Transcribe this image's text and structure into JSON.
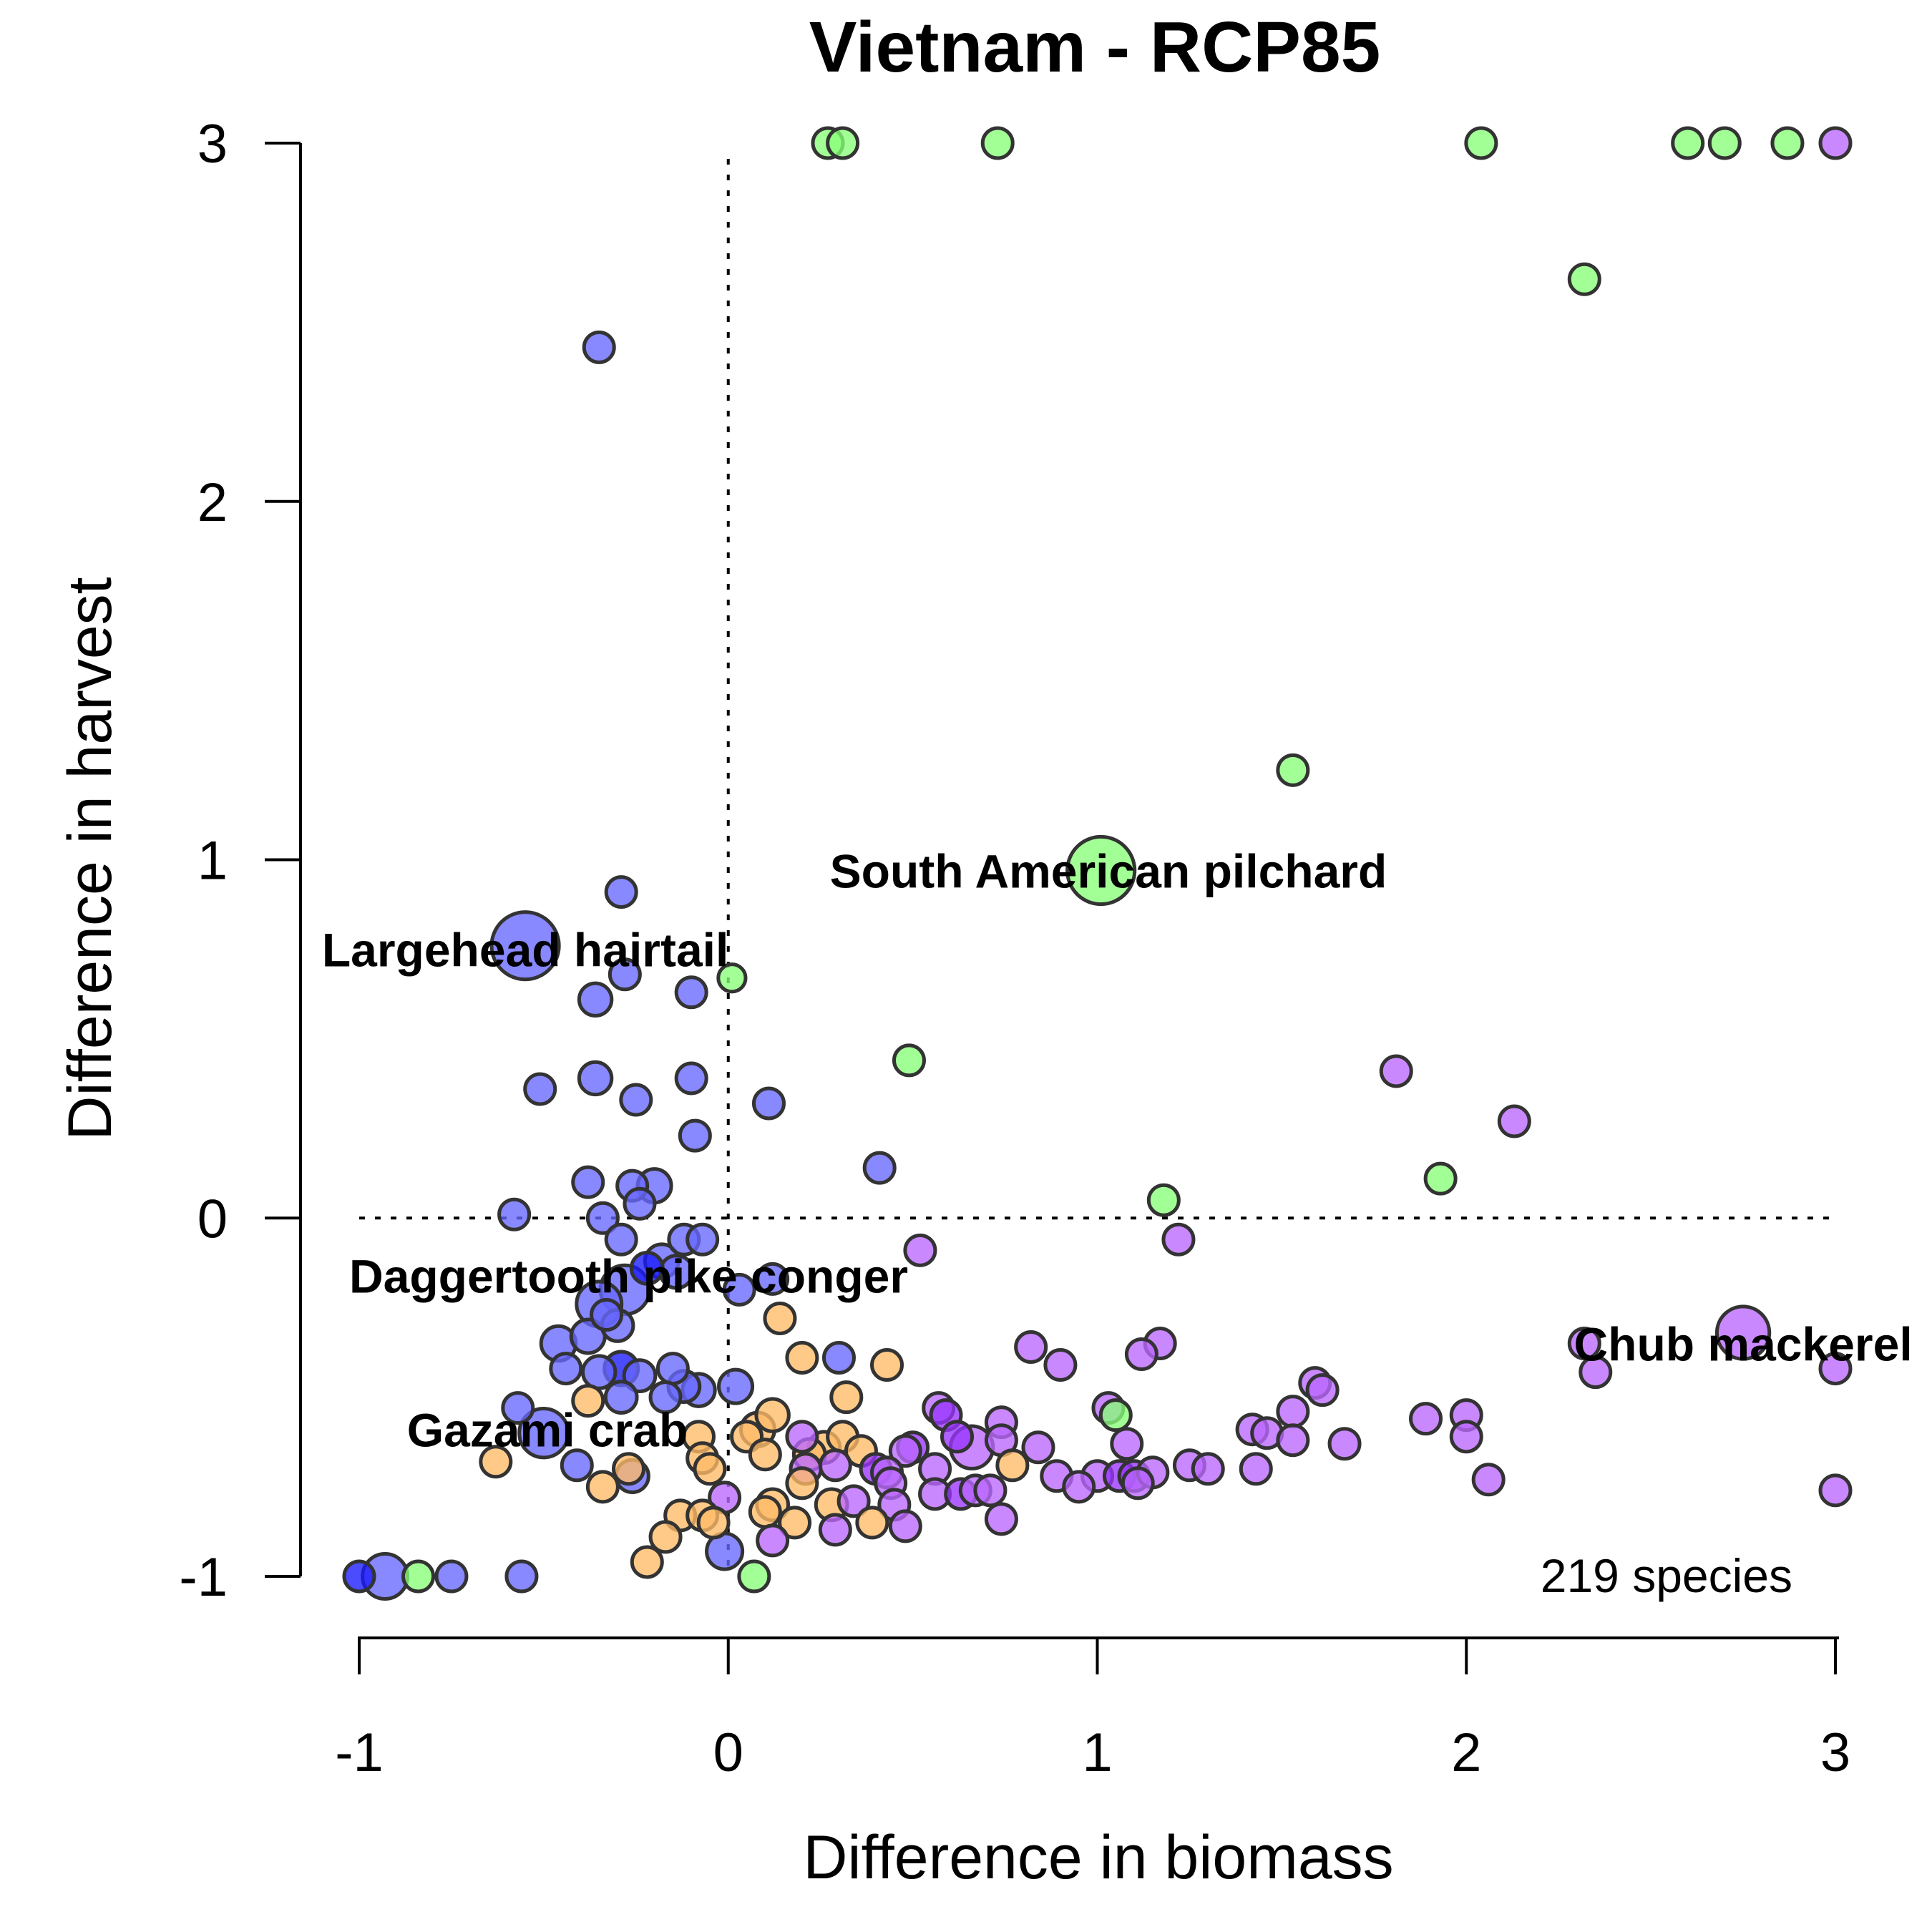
{
  "chart_data": {
    "type": "scatter",
    "title": "Vietnam - RCP85",
    "xlabel": "Difference in biomass",
    "ylabel": "Difference in harvest",
    "xlim": [
      -1,
      3
    ],
    "ylim": [
      -1,
      3
    ],
    "x_ticks": [
      "-1",
      "0",
      "1",
      "2",
      "3"
    ],
    "y_ticks": [
      "-1",
      "0",
      "1",
      "2",
      "3"
    ],
    "grid": false,
    "reference_lines": {
      "x": 0,
      "y": 0,
      "style": "dotted"
    },
    "annotation": "219 species",
    "colors": {
      "blue": "#6666ff",
      "dark_blue": "#1a1aff",
      "green": "#88ff77",
      "orange": "#ffbb66",
      "purple": "#bb66ff",
      "dark_purple": "#9933ff"
    },
    "labels": [
      {
        "text": "Largehead hairtail",
        "x": -0.55,
        "y": 0.75
      },
      {
        "text": "South American pilchard",
        "x": 1.03,
        "y": 0.97
      },
      {
        "text": "Daggertooth pike conger",
        "x": -0.27,
        "y": -0.16
      },
      {
        "text": "Gazami crab",
        "x": -0.49,
        "y": -0.59
      },
      {
        "text": "Chub mackerel",
        "x": 2.75,
        "y": -0.35
      }
    ],
    "points": [
      {
        "x": -0.55,
        "y": 0.76,
        "size": 6,
        "group": "blue"
      },
      {
        "x": 1.01,
        "y": 0.97,
        "size": 6,
        "group": "green"
      },
      {
        "x": 2.75,
        "y": -0.32,
        "size": 3.5,
        "group": "purple"
      },
      {
        "x": -0.5,
        "y": -0.6,
        "size": 3,
        "group": "blue"
      },
      {
        "x": -0.93,
        "y": -1.0,
        "size": 2.5,
        "group": "blue"
      },
      {
        "x": -0.28,
        "y": -0.2,
        "size": 3,
        "group": "blue"
      },
      {
        "x": -0.35,
        "y": -0.24,
        "size": 2.5,
        "group": "blue"
      },
      {
        "x": 0.66,
        "y": -0.64,
        "size": 2.2,
        "group": "purple"
      },
      {
        "x": 0.27,
        "y": 3.0,
        "size": 1,
        "group": "green"
      },
      {
        "x": 0.31,
        "y": 3.0,
        "size": 1,
        "group": "green"
      },
      {
        "x": 0.73,
        "y": 3.0,
        "size": 1,
        "group": "green"
      },
      {
        "x": 2.04,
        "y": 3.0,
        "size": 1,
        "group": "green"
      },
      {
        "x": 2.6,
        "y": 3.0,
        "size": 1,
        "group": "green"
      },
      {
        "x": 2.7,
        "y": 3.0,
        "size": 1,
        "group": "green"
      },
      {
        "x": 2.87,
        "y": 3.0,
        "size": 1,
        "group": "green"
      },
      {
        "x": 3.0,
        "y": 3.0,
        "size": 1,
        "group": "purple"
      },
      {
        "x": 2.32,
        "y": 2.62,
        "size": 1,
        "group": "green"
      },
      {
        "x": -0.35,
        "y": 2.43,
        "size": 1,
        "group": "blue"
      },
      {
        "x": 1.53,
        "y": 1.25,
        "size": 1,
        "group": "green"
      },
      {
        "x": -0.29,
        "y": 0.91,
        "size": 1,
        "group": "blue"
      },
      {
        "x": 0.01,
        "y": 0.67,
        "size": 0.8,
        "group": "green"
      },
      {
        "x": -0.28,
        "y": 0.68,
        "size": 1,
        "group": "blue"
      },
      {
        "x": -0.1,
        "y": 0.63,
        "size": 1,
        "group": "blue"
      },
      {
        "x": -0.36,
        "y": 0.61,
        "size": 1.2,
        "group": "blue"
      },
      {
        "x": 0.49,
        "y": 0.44,
        "size": 1,
        "group": "green"
      },
      {
        "x": 1.81,
        "y": 0.41,
        "size": 1,
        "group": "purple"
      },
      {
        "x": -0.36,
        "y": 0.39,
        "size": 1.2,
        "group": "blue"
      },
      {
        "x": -0.1,
        "y": 0.39,
        "size": 1,
        "group": "blue"
      },
      {
        "x": -0.51,
        "y": 0.36,
        "size": 1,
        "group": "blue"
      },
      {
        "x": -0.25,
        "y": 0.33,
        "size": 1,
        "group": "blue"
      },
      {
        "x": 0.11,
        "y": 0.32,
        "size": 1,
        "group": "blue"
      },
      {
        "x": 2.13,
        "y": 0.27,
        "size": 1,
        "group": "purple"
      },
      {
        "x": -0.09,
        "y": 0.23,
        "size": 1,
        "group": "blue"
      },
      {
        "x": 0.41,
        "y": 0.14,
        "size": 1,
        "group": "blue"
      },
      {
        "x": 1.93,
        "y": 0.11,
        "size": 1,
        "group": "green"
      },
      {
        "x": -0.38,
        "y": 0.1,
        "size": 1,
        "group": "blue"
      },
      {
        "x": -0.26,
        "y": 0.09,
        "size": 1,
        "group": "blue"
      },
      {
        "x": -0.2,
        "y": 0.09,
        "size": 1.3,
        "group": "blue"
      },
      {
        "x": -0.24,
        "y": 0.04,
        "size": 1,
        "group": "blue"
      },
      {
        "x": 1.18,
        "y": 0.05,
        "size": 1,
        "group": "green"
      },
      {
        "x": -0.58,
        "y": 0.01,
        "size": 1,
        "group": "blue"
      },
      {
        "x": -0.34,
        "y": 0.0,
        "size": 1,
        "group": "blue"
      },
      {
        "x": -0.29,
        "y": -0.06,
        "size": 1,
        "group": "blue"
      },
      {
        "x": -0.12,
        "y": -0.06,
        "size": 1,
        "group": "blue"
      },
      {
        "x": -0.07,
        "y": -0.06,
        "size": 1,
        "group": "blue"
      },
      {
        "x": 1.22,
        "y": -0.06,
        "size": 1,
        "group": "purple"
      },
      {
        "x": 0.52,
        "y": -0.09,
        "size": 1,
        "group": "purple"
      },
      {
        "x": -0.18,
        "y": -0.12,
        "size": 1.3,
        "group": "blue"
      },
      {
        "x": -0.14,
        "y": -0.15,
        "size": 1.2,
        "group": "blue"
      },
      {
        "x": -0.22,
        "y": -0.14,
        "size": 1.1,
        "group": "dark_blue"
      },
      {
        "x": 0.12,
        "y": -0.17,
        "size": 1,
        "group": "blue"
      },
      {
        "x": 0.03,
        "y": -0.2,
        "size": 1,
        "group": "blue"
      },
      {
        "x": -0.33,
        "y": -0.27,
        "size": 1,
        "group": "blue"
      },
      {
        "x": -0.3,
        "y": -0.3,
        "size": 1.1,
        "group": "blue"
      },
      {
        "x": 0.14,
        "y": -0.28,
        "size": 1,
        "group": "orange"
      },
      {
        "x": -0.38,
        "y": -0.33,
        "size": 1.3,
        "group": "blue"
      },
      {
        "x": -0.46,
        "y": -0.35,
        "size": 1.4,
        "group": "blue"
      },
      {
        "x": 1.17,
        "y": -0.35,
        "size": 1,
        "group": "purple"
      },
      {
        "x": 0.82,
        "y": -0.36,
        "size": 1,
        "group": "purple"
      },
      {
        "x": -0.44,
        "y": -0.42,
        "size": 1,
        "group": "blue"
      },
      {
        "x": -0.35,
        "y": -0.43,
        "size": 1.2,
        "group": "blue"
      },
      {
        "x": -0.29,
        "y": -0.42,
        "size": 1.3,
        "group": "dark_blue"
      },
      {
        "x": -0.24,
        "y": -0.44,
        "size": 1.1,
        "group": "blue"
      },
      {
        "x": -0.15,
        "y": -0.42,
        "size": 1,
        "group": "blue"
      },
      {
        "x": 0.2,
        "y": -0.39,
        "size": 1,
        "group": "orange"
      },
      {
        "x": 0.3,
        "y": -0.39,
        "size": 1,
        "group": "blue"
      },
      {
        "x": 0.43,
        "y": -0.41,
        "size": 1,
        "group": "orange"
      },
      {
        "x": 0.9,
        "y": -0.41,
        "size": 1,
        "group": "purple"
      },
      {
        "x": 1.12,
        "y": -0.38,
        "size": 1,
        "group": "purple"
      },
      {
        "x": 2.32,
        "y": -0.35,
        "size": 1,
        "group": "purple"
      },
      {
        "x": 2.35,
        "y": -0.43,
        "size": 1,
        "group": "purple"
      },
      {
        "x": 3.0,
        "y": -0.42,
        "size": 1,
        "group": "purple"
      },
      {
        "x": -0.12,
        "y": -0.47,
        "size": 1.1,
        "group": "blue"
      },
      {
        "x": -0.08,
        "y": -0.48,
        "size": 1.2,
        "group": "blue"
      },
      {
        "x": 0.02,
        "y": -0.47,
        "size": 1.3,
        "group": "blue"
      },
      {
        "x": 1.59,
        "y": -0.46,
        "size": 1,
        "group": "purple"
      },
      {
        "x": 1.61,
        "y": -0.48,
        "size": 1,
        "group": "purple"
      },
      {
        "x": -0.57,
        "y": -0.53,
        "size": 1,
        "group": "blue"
      },
      {
        "x": -0.38,
        "y": -0.51,
        "size": 1,
        "group": "orange"
      },
      {
        "x": -0.29,
        "y": -0.5,
        "size": 1.1,
        "group": "blue"
      },
      {
        "x": -0.17,
        "y": -0.5,
        "size": 1,
        "group": "blue"
      },
      {
        "x": 0.32,
        "y": -0.5,
        "size": 1,
        "group": "orange"
      },
      {
        "x": 0.57,
        "y": -0.53,
        "size": 1,
        "group": "purple"
      },
      {
        "x": 1.03,
        "y": -0.53,
        "size": 1,
        "group": "purple"
      },
      {
        "x": 1.05,
        "y": -0.55,
        "size": 1,
        "group": "green"
      },
      {
        "x": 1.53,
        "y": -0.54,
        "size": 1,
        "group": "purple"
      },
      {
        "x": 1.89,
        "y": -0.56,
        "size": 1,
        "group": "purple"
      },
      {
        "x": 2.0,
        "y": -0.55,
        "size": 1,
        "group": "purple"
      },
      {
        "x": 0.12,
        "y": -0.55,
        "size": 1.2,
        "group": "orange"
      },
      {
        "x": 0.08,
        "y": -0.59,
        "size": 1.3,
        "group": "orange"
      },
      {
        "x": 0.59,
        "y": -0.55,
        "size": 1,
        "group": "dark_purple"
      },
      {
        "x": 0.74,
        "y": -0.57,
        "size": 1,
        "group": "purple"
      },
      {
        "x": -0.08,
        "y": -0.61,
        "size": 1,
        "group": "orange"
      },
      {
        "x": 0.05,
        "y": -0.61,
        "size": 1,
        "group": "orange"
      },
      {
        "x": 0.2,
        "y": -0.61,
        "size": 1,
        "group": "purple"
      },
      {
        "x": 0.31,
        "y": -0.61,
        "size": 1,
        "group": "orange"
      },
      {
        "x": 0.62,
        "y": -0.61,
        "size": 1,
        "group": "dark_purple"
      },
      {
        "x": 0.74,
        "y": -0.62,
        "size": 1,
        "group": "purple"
      },
      {
        "x": 1.42,
        "y": -0.59,
        "size": 1,
        "group": "purple"
      },
      {
        "x": 1.46,
        "y": -0.6,
        "size": 1,
        "group": "purple"
      },
      {
        "x": 1.53,
        "y": -0.62,
        "size": 1,
        "group": "purple"
      },
      {
        "x": 1.67,
        "y": -0.63,
        "size": 1,
        "group": "purple"
      },
      {
        "x": 2.0,
        "y": -0.61,
        "size": 1,
        "group": "purple"
      },
      {
        "x": 1.08,
        "y": -0.63,
        "size": 1,
        "group": "purple"
      },
      {
        "x": 0.84,
        "y": -0.64,
        "size": 1,
        "group": "purple"
      },
      {
        "x": 0.5,
        "y": -0.64,
        "size": 1,
        "group": "dark_purple"
      },
      {
        "x": 0.48,
        "y": -0.65,
        "size": 1,
        "group": "purple"
      },
      {
        "x": 0.26,
        "y": -0.64,
        "size": 1.1,
        "group": "orange"
      },
      {
        "x": 0.22,
        "y": -0.66,
        "size": 1.1,
        "group": "orange"
      },
      {
        "x": 0.36,
        "y": -0.65,
        "size": 1,
        "group": "orange"
      },
      {
        "x": 0.1,
        "y": -0.66,
        "size": 1,
        "group": "orange"
      },
      {
        "x": -0.63,
        "y": -0.68,
        "size": 1,
        "group": "orange"
      },
      {
        "x": -0.41,
        "y": -0.69,
        "size": 1,
        "group": "blue"
      },
      {
        "x": -0.27,
        "y": -0.7,
        "size": 1,
        "group": "orange"
      },
      {
        "x": -0.07,
        "y": -0.67,
        "size": 1,
        "group": "orange"
      },
      {
        "x": -0.05,
        "y": -0.7,
        "size": 1,
        "group": "orange"
      },
      {
        "x": 0.21,
        "y": -0.7,
        "size": 1,
        "group": "purple"
      },
      {
        "x": 0.29,
        "y": -0.69,
        "size": 1,
        "group": "purple"
      },
      {
        "x": 0.4,
        "y": -0.7,
        "size": 1,
        "group": "dark_purple"
      },
      {
        "x": 0.43,
        "y": -0.71,
        "size": 1,
        "group": "purple"
      },
      {
        "x": 0.56,
        "y": -0.7,
        "size": 1,
        "group": "purple"
      },
      {
        "x": 0.77,
        "y": -0.69,
        "size": 1,
        "group": "orange"
      },
      {
        "x": 0.89,
        "y": -0.72,
        "size": 1,
        "group": "purple"
      },
      {
        "x": 1.0,
        "y": -0.72,
        "size": 1,
        "group": "purple"
      },
      {
        "x": 1.06,
        "y": -0.72,
        "size": 1,
        "group": "dark_purple"
      },
      {
        "x": 1.1,
        "y": -0.72,
        "size": 1,
        "group": "dark_purple"
      },
      {
        "x": 1.15,
        "y": -0.71,
        "size": 1,
        "group": "purple"
      },
      {
        "x": 1.25,
        "y": -0.69,
        "size": 1,
        "group": "purple"
      },
      {
        "x": 1.3,
        "y": -0.7,
        "size": 1,
        "group": "purple"
      },
      {
        "x": 1.43,
        "y": -0.7,
        "size": 1,
        "group": "purple"
      },
      {
        "x": 2.06,
        "y": -0.73,
        "size": 1,
        "group": "purple"
      },
      {
        "x": -0.26,
        "y": -0.72,
        "size": 1.2,
        "group": "blue"
      },
      {
        "x": -0.34,
        "y": -0.75,
        "size": 1,
        "group": "orange"
      },
      {
        "x": 0.95,
        "y": -0.75,
        "size": 1,
        "group": "purple"
      },
      {
        "x": 1.11,
        "y": -0.74,
        "size": 1,
        "group": "purple"
      },
      {
        "x": 0.2,
        "y": -0.74,
        "size": 1,
        "group": "orange"
      },
      {
        "x": 0.44,
        "y": -0.74,
        "size": 1,
        "group": "purple"
      },
      {
        "x": 0.56,
        "y": -0.77,
        "size": 1,
        "group": "purple"
      },
      {
        "x": 0.63,
        "y": -0.77,
        "size": 1,
        "group": "dark_purple"
      },
      {
        "x": 0.67,
        "y": -0.76,
        "size": 1,
        "group": "purple"
      },
      {
        "x": 0.71,
        "y": -0.76,
        "size": 1,
        "group": "purple"
      },
      {
        "x": 3.0,
        "y": -0.76,
        "size": 1,
        "group": "purple"
      },
      {
        "x": -0.01,
        "y": -0.78,
        "size": 1,
        "group": "purple"
      },
      {
        "x": 0.12,
        "y": -0.8,
        "size": 1.1,
        "group": "orange"
      },
      {
        "x": 0.28,
        "y": -0.8,
        "size": 1.1,
        "group": "orange"
      },
      {
        "x": 0.34,
        "y": -0.79,
        "size": 1,
        "group": "purple"
      },
      {
        "x": 0.45,
        "y": -0.8,
        "size": 1,
        "group": "purple"
      },
      {
        "x": -0.13,
        "y": -0.83,
        "size": 1,
        "group": "orange"
      },
      {
        "x": 0.1,
        "y": -0.82,
        "size": 1,
        "group": "orange"
      },
      {
        "x": -0.07,
        "y": -0.83,
        "size": 1,
        "group": "orange"
      },
      {
        "x": -0.04,
        "y": -0.85,
        "size": 1,
        "group": "orange"
      },
      {
        "x": 0.18,
        "y": -0.85,
        "size": 1,
        "group": "orange"
      },
      {
        "x": 0.29,
        "y": -0.87,
        "size": 1,
        "group": "purple"
      },
      {
        "x": 0.39,
        "y": -0.85,
        "size": 1,
        "group": "orange"
      },
      {
        "x": 0.48,
        "y": -0.86,
        "size": 1,
        "group": "purple"
      },
      {
        "x": 0.74,
        "y": -0.84,
        "size": 1,
        "group": "purple"
      },
      {
        "x": -0.17,
        "y": -0.89,
        "size": 1,
        "group": "orange"
      },
      {
        "x": 0.12,
        "y": -0.9,
        "size": 1,
        "group": "purple"
      },
      {
        "x": -0.01,
        "y": -0.93,
        "size": 1.5,
        "group": "blue"
      },
      {
        "x": -0.22,
        "y": -0.96,
        "size": 1,
        "group": "orange"
      },
      {
        "x": -1.0,
        "y": -1.0,
        "size": 1,
        "group": "dark_blue"
      },
      {
        "x": -0.84,
        "y": -1.0,
        "size": 1,
        "group": "green"
      },
      {
        "x": -0.75,
        "y": -1.0,
        "size": 1,
        "group": "blue"
      },
      {
        "x": -0.56,
        "y": -1.0,
        "size": 1,
        "group": "blue"
      },
      {
        "x": 0.07,
        "y": -1.0,
        "size": 1,
        "group": "green"
      }
    ]
  }
}
